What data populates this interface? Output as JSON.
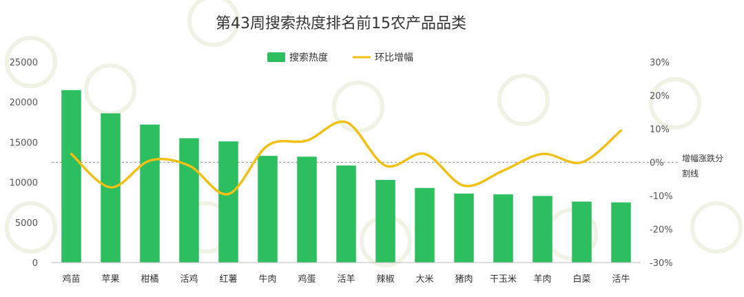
{
  "chart_data": {
    "type": "bar",
    "title": "第43周搜索热度排名前15农产品品类",
    "categories": [
      "鸡苗",
      "苹果",
      "柑橘",
      "活鸡",
      "红薯",
      "牛肉",
      "鸡蛋",
      "活羊",
      "辣椒",
      "大米",
      "猪肉",
      "干玉米",
      "羊肉",
      "白菜",
      "活牛"
    ],
    "series": [
      {
        "name": "搜索热度",
        "kind": "bar",
        "axis": "left",
        "color": "#2dbe60",
        "values": [
          21500,
          18600,
          17200,
          15500,
          15100,
          13300,
          13200,
          12100,
          10300,
          9300,
          8600,
          8500,
          8300,
          7600,
          7500
        ]
      },
      {
        "name": "环比增幅",
        "kind": "line",
        "axis": "right",
        "color": "#f2c014",
        "values": [
          2.5,
          -7.5,
          0.5,
          -1,
          -9.5,
          5,
          6.5,
          12,
          -1,
          2.5,
          -7,
          -2.5,
          2.5,
          0,
          9.5
        ]
      }
    ],
    "ylim_left": [
      0,
      25000
    ],
    "yticks_left": [
      "0",
      "5000",
      "10000",
      "15000",
      "20000",
      "25000"
    ],
    "ylim_right": [
      -30,
      30
    ],
    "yticks_right": [
      "-30%",
      "-20%",
      "-10%",
      "0%",
      "10%",
      "20%",
      "30%"
    ],
    "reference_line": {
      "value": 0,
      "label": "增幅涨跌分割线"
    },
    "legend_position": "top-center"
  }
}
